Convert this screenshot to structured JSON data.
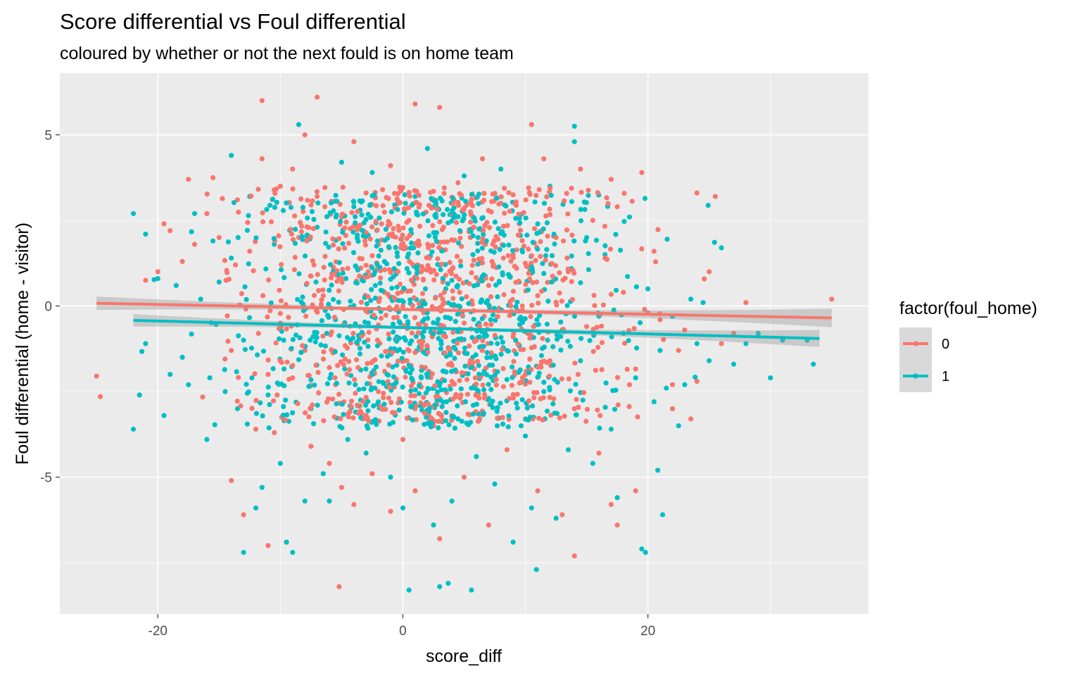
{
  "chart_data": {
    "type": "scatter",
    "title": "Score differential vs Foul differential",
    "subtitle": "coloured by whether or not the next fould is on home team",
    "xlabel": "score_diff",
    "ylabel": "Foul differential (home - visitor)",
    "xlim": [
      -28,
      38
    ],
    "ylim": [
      -9.0,
      6.8
    ],
    "x_ticks": [
      -20,
      0,
      20
    ],
    "x_tick_labels": [
      "-20",
      "0",
      "20"
    ],
    "y_ticks": [
      -5,
      0,
      5
    ],
    "y_tick_labels": [
      "-5",
      "0",
      "5"
    ],
    "grid": true,
    "legend": {
      "title": "factor(foul_home)",
      "position": "right"
    },
    "series": [
      {
        "name": "0",
        "color": "#F8766D",
        "trend": {
          "x": [
            -25,
            35
          ],
          "y": [
            0.08,
            -0.35
          ],
          "band_halfwidth_ends": 0.27,
          "band_halfwidth_mid": 0.05
        },
        "points": [
          [
            -25,
            -2.05
          ],
          [
            -24.7,
            -2.65
          ],
          [
            -21,
            0.75
          ],
          [
            -20,
            1.0
          ],
          [
            -19.5,
            2.4
          ],
          [
            -19,
            2.2
          ],
          [
            -18,
            1.3
          ],
          [
            -17.5,
            3.7
          ],
          [
            -17,
            1.8
          ],
          [
            -16,
            2.7
          ],
          [
            -15.5,
            3.75
          ],
          [
            -15,
            2.0
          ],
          [
            -14,
            -1.3
          ],
          [
            -14,
            -5.1
          ],
          [
            -13.5,
            3.1
          ],
          [
            -13,
            -6.1
          ],
          [
            -12.5,
            1.6
          ],
          [
            -12,
            -3.6
          ],
          [
            -11.5,
            6.0
          ],
          [
            -11.5,
            4.3
          ],
          [
            -11,
            -7.0
          ],
          [
            -11,
            -2.0
          ],
          [
            -10.5,
            -3.7
          ],
          [
            -10,
            3.5
          ],
          [
            -10,
            -0.5
          ],
          [
            -9.5,
            -6.9
          ],
          [
            -9,
            4.0
          ],
          [
            -9,
            -2.1
          ],
          [
            -8.5,
            2.0
          ],
          [
            -8,
            5.0
          ],
          [
            -8,
            -1.3
          ],
          [
            -7.5,
            -4.1
          ],
          [
            -7,
            6.1
          ],
          [
            -7,
            3.2
          ],
          [
            -6.5,
            0.3
          ],
          [
            -6,
            -1.8
          ],
          [
            -6,
            -4.6
          ],
          [
            -5.5,
            -2.3
          ],
          [
            -5.2,
            -8.2
          ],
          [
            -5,
            2.6
          ],
          [
            -5,
            -5.3
          ],
          [
            -4.5,
            1.1
          ],
          [
            -4,
            -5.8
          ],
          [
            -4,
            4.8
          ],
          [
            -3.5,
            -0.6
          ],
          [
            -3,
            3.3
          ],
          [
            -3,
            -3.2
          ],
          [
            -2.5,
            -4.9
          ],
          [
            -2,
            1.8
          ],
          [
            -2,
            -2.5
          ],
          [
            -1.5,
            0.4
          ],
          [
            -1,
            -6.0
          ],
          [
            -1,
            4.1
          ],
          [
            -0.5,
            -1.3
          ],
          [
            0,
            0.0
          ],
          [
            0,
            -3.9
          ],
          [
            0.5,
            2.5
          ],
          [
            1,
            5.9
          ],
          [
            1,
            -5.4
          ],
          [
            1.5,
            1.0
          ],
          [
            2,
            -1.2
          ],
          [
            2.5,
            -3.5
          ],
          [
            3,
            5.8
          ],
          [
            3,
            -6.8
          ],
          [
            3.5,
            0.9
          ],
          [
            4,
            -2.2
          ],
          [
            4.5,
            3.6
          ],
          [
            5,
            -0.5
          ],
          [
            5,
            -5.0
          ],
          [
            5.5,
            2.0
          ],
          [
            6,
            -2.6
          ],
          [
            6.5,
            4.3
          ],
          [
            7,
            -6.4
          ],
          [
            7,
            0.6
          ],
          [
            7.5,
            -1.9
          ],
          [
            8,
            3.0
          ],
          [
            8.5,
            -4.2
          ],
          [
            9,
            1.5
          ],
          [
            9,
            -0.9
          ],
          [
            9.5,
            2.4
          ],
          [
            10,
            -3.3
          ],
          [
            10.5,
            5.3
          ],
          [
            11,
            -5.4
          ],
          [
            11,
            0.3
          ],
          [
            11.5,
            4.3
          ],
          [
            12,
            -1.6
          ],
          [
            12.5,
            2.0
          ],
          [
            13,
            -6.1
          ],
          [
            13.5,
            1.0
          ],
          [
            14,
            -3.0
          ],
          [
            14,
            -7.3
          ],
          [
            14.5,
            4.0
          ],
          [
            15,
            -0.6
          ],
          [
            15.5,
            2.5
          ],
          [
            16,
            -4.3
          ],
          [
            16.5,
            1.4
          ],
          [
            17,
            3.7
          ],
          [
            17,
            -5.8
          ],
          [
            17.5,
            -6.4
          ],
          [
            18,
            0.4
          ],
          [
            18.5,
            -2.3
          ],
          [
            19,
            -5.4
          ],
          [
            19.5,
            3.9
          ],
          [
            20,
            -0.2
          ],
          [
            20.5,
            1.6
          ],
          [
            21,
            -0.4
          ],
          [
            22,
            -2.3
          ],
          [
            22,
            -3.0
          ],
          [
            22.5,
            -1.3
          ],
          [
            23,
            -0.7
          ],
          [
            23.5,
            -3.3
          ],
          [
            24,
            3.3
          ],
          [
            24,
            -2.2
          ],
          [
            25,
            1.0
          ],
          [
            25.5,
            3.2
          ],
          [
            26,
            -1.1
          ],
          [
            27,
            -0.8
          ],
          [
            28,
            0.1
          ],
          [
            35,
            0.2
          ]
        ]
      },
      {
        "name": "1",
        "color": "#00BFC4",
        "trend": {
          "x": [
            -22,
            34
          ],
          "y": [
            -0.42,
            -0.95
          ],
          "band_halfwidth_ends": 0.25,
          "band_halfwidth_mid": 0.05
        },
        "points": [
          [
            -22,
            2.7
          ],
          [
            -22,
            -3.6
          ],
          [
            -21.5,
            -2.6
          ],
          [
            -21,
            2.1
          ],
          [
            -21,
            -1.1
          ],
          [
            -20,
            0.8
          ],
          [
            -19.5,
            -3.2
          ],
          [
            -19,
            -2.0
          ],
          [
            -18.5,
            0.6
          ],
          [
            -18,
            -1.5
          ],
          [
            -17.5,
            -2.3
          ],
          [
            -17,
            2.7
          ],
          [
            -16.5,
            0.2
          ],
          [
            -16,
            -3.9
          ],
          [
            -15.5,
            1.9
          ],
          [
            -15,
            0.7
          ],
          [
            -14.5,
            -2.5
          ],
          [
            -14,
            4.4
          ],
          [
            -14,
            1.4
          ],
          [
            -13.5,
            -3.0
          ],
          [
            -13,
            -7.2
          ],
          [
            -13,
            -1.0
          ],
          [
            -12.5,
            3.2
          ],
          [
            -12,
            -5.9
          ],
          [
            -11.5,
            -5.3
          ],
          [
            -11,
            -2.6
          ],
          [
            -10.5,
            1.8
          ],
          [
            -10,
            -4.6
          ],
          [
            -9.5,
            -6.9
          ],
          [
            -9,
            -7.2
          ],
          [
            -8.5,
            5.3
          ],
          [
            -8,
            -5.7
          ],
          [
            -7.5,
            -3.0
          ],
          [
            -7,
            2.3
          ],
          [
            -6.5,
            -4.9
          ],
          [
            -6,
            -5.7
          ],
          [
            -5.5,
            -0.4
          ],
          [
            -5,
            4.2
          ],
          [
            -4.5,
            -3.9
          ],
          [
            -4,
            2.9
          ],
          [
            -3.5,
            -1.4
          ],
          [
            -3,
            -4.3
          ],
          [
            -2.5,
            3.9
          ],
          [
            -2,
            -2.8
          ],
          [
            -1.5,
            1.3
          ],
          [
            -1,
            -5.0
          ],
          [
            -0.5,
            -0.9
          ],
          [
            0,
            -5.9
          ],
          [
            0.5,
            -8.3
          ],
          [
            1,
            3.2
          ],
          [
            1.5,
            -2.1
          ],
          [
            2,
            4.6
          ],
          [
            2.5,
            -6.4
          ],
          [
            3,
            -8.2
          ],
          [
            3.5,
            0.5
          ],
          [
            3.7,
            -8.1
          ],
          [
            4,
            -5.7
          ],
          [
            4.5,
            -3.3
          ],
          [
            5,
            3.8
          ],
          [
            5.5,
            -1.8
          ],
          [
            5.6,
            -8.3
          ],
          [
            6,
            -4.4
          ],
          [
            6.5,
            2.2
          ],
          [
            7,
            -2.7
          ],
          [
            7.5,
            -5.2
          ],
          [
            8,
            4.0
          ],
          [
            8.5,
            -1.3
          ],
          [
            9,
            -6.9
          ],
          [
            9.5,
            0.7
          ],
          [
            10,
            -3.8
          ],
          [
            10.5,
            -5.9
          ],
          [
            10.9,
            -7.7
          ],
          [
            11,
            2.4
          ],
          [
            11.5,
            -2.5
          ],
          [
            12,
            3.5
          ],
          [
            12.5,
            -6.2
          ],
          [
            13,
            -0.7
          ],
          [
            13.5,
            -4.2
          ],
          [
            14,
            5.25
          ],
          [
            14,
            4.8
          ],
          [
            14.5,
            -1.6
          ],
          [
            15,
            2.0
          ],
          [
            15.5,
            -4.6
          ],
          [
            16,
            -0.3
          ],
          [
            16.5,
            1.5
          ],
          [
            17,
            -3.6
          ],
          [
            17.5,
            -5.6
          ],
          [
            18,
            -0.8
          ],
          [
            18.5,
            2.6
          ],
          [
            19,
            -2.1
          ],
          [
            19.5,
            -7.1
          ],
          [
            19.8,
            -7.2
          ],
          [
            20,
            0.5
          ],
          [
            20.5,
            -2.8
          ],
          [
            20.8,
            -4.8
          ],
          [
            21,
            -1.3
          ],
          [
            21.2,
            -6.1
          ],
          [
            21.5,
            -2.4
          ],
          [
            22,
            -0.3
          ],
          [
            22.5,
            -3.5
          ],
          [
            23,
            -2.3
          ],
          [
            23.5,
            0.2
          ],
          [
            24,
            -1.1
          ],
          [
            24.5,
            0.1
          ],
          [
            25,
            -1.6
          ],
          [
            26,
            1.7
          ],
          [
            27,
            -1.7
          ],
          [
            28,
            -1.1
          ],
          [
            29,
            -0.8
          ],
          [
            30,
            -2.1
          ],
          [
            31,
            -1.0
          ],
          [
            33,
            -1.0
          ],
          [
            33.5,
            -1.7
          ]
        ]
      }
    ],
    "dense_core": {
      "x_center": 2.5,
      "x_spread": 7.5,
      "y_levels": [
        -3,
        -2,
        -1,
        0,
        1,
        2,
        3
      ],
      "count_per_series": 900
    }
  }
}
